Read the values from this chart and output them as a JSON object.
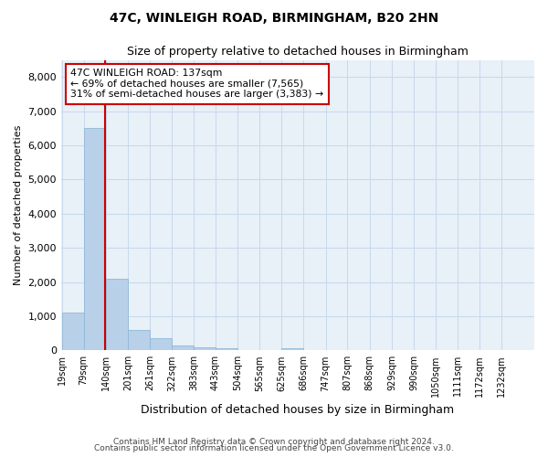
{
  "title_line1": "47C, WINLEIGH ROAD, BIRMINGHAM, B20 2HN",
  "title_line2": "Size of property relative to detached houses in Birmingham",
  "xlabel": "Distribution of detached houses by size in Birmingham",
  "ylabel": "Number of detached properties",
  "bar_color": "#b8d0e8",
  "bar_edge_color": "#90b8d8",
  "categories": [
    "19sqm",
    "79sqm",
    "140sqm",
    "201sqm",
    "261sqm",
    "322sqm",
    "383sqm",
    "443sqm",
    "504sqm",
    "565sqm",
    "625sqm",
    "686sqm",
    "747sqm",
    "807sqm",
    "868sqm",
    "929sqm",
    "990sqm",
    "1050sqm",
    "1111sqm",
    "1172sqm",
    "1232sqm"
  ],
  "bar_values": [
    1100,
    6500,
    2100,
    600,
    350,
    130,
    100,
    50,
    0,
    0,
    50,
    0,
    0,
    0,
    0,
    0,
    0,
    0,
    0,
    0,
    0
  ],
  "bin_edges": [
    19,
    79,
    140,
    201,
    261,
    322,
    383,
    443,
    504,
    565,
    625,
    686,
    747,
    807,
    868,
    929,
    990,
    1050,
    1111,
    1172,
    1232,
    1292
  ],
  "bin_centers": [
    49,
    109.5,
    170.5,
    231,
    291,
    352.5,
    413,
    473.5,
    534.5,
    595,
    655.5,
    716,
    777,
    837.5,
    898.5,
    959.5,
    1020,
    1080.5,
    1141.5,
    1202,
    1262
  ],
  "bin_width": 61,
  "property_size": 137,
  "vline_color": "#cc0000",
  "annotation_text": "47C WINLEIGH ROAD: 137sqm\n← 69% of detached houses are smaller (7,565)\n31% of semi-detached houses are larger (3,383) →",
  "annotation_box_color": "#cc0000",
  "ylim": [
    0,
    8500
  ],
  "yticks": [
    0,
    1000,
    2000,
    3000,
    4000,
    5000,
    6000,
    7000,
    8000
  ],
  "grid_color": "#c8d8ec",
  "bg_color": "#e8f0f8",
  "footer_line1": "Contains HM Land Registry data © Crown copyright and database right 2024.",
  "footer_line2": "Contains public sector information licensed under the Open Government Licence v3.0."
}
